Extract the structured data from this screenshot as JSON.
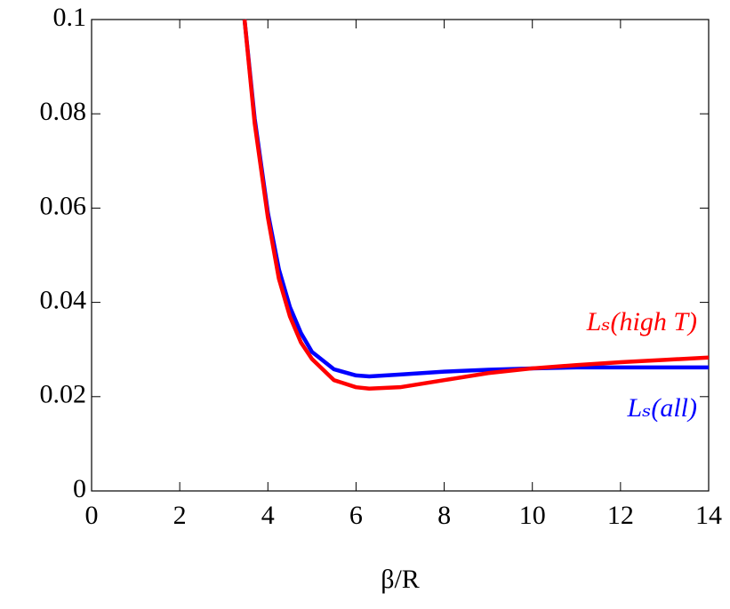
{
  "chart_data": {
    "type": "line",
    "xlabel": "β/R",
    "xlim": [
      0,
      14
    ],
    "xticks": [
      0,
      2,
      4,
      6,
      8,
      10,
      12,
      14
    ],
    "ylim": [
      0,
      0.1
    ],
    "yticks": [
      0,
      0.02,
      0.04,
      0.06,
      0.08,
      0.1
    ],
    "x": [
      3.47,
      3.7,
      4,
      4.25,
      4.5,
      4.75,
      5,
      5.5,
      6,
      6.3,
      7,
      8,
      9,
      10,
      11,
      12,
      13,
      14
    ],
    "series": [
      {
        "name": "Lₛ(all)",
        "color": "#0000ff",
        "values": [
          0.1,
          0.079,
          0.059,
          0.047,
          0.039,
          0.0335,
          0.0295,
          0.0258,
          0.0245,
          0.0243,
          0.0247,
          0.0253,
          0.0257,
          0.026,
          0.0262,
          0.0262,
          0.0262,
          0.0262
        ]
      },
      {
        "name": "Lₛ(high T)",
        "color": "#ff0000",
        "values": [
          0.1,
          0.078,
          0.058,
          0.045,
          0.037,
          0.0315,
          0.028,
          0.0235,
          0.022,
          0.0217,
          0.022,
          0.0235,
          0.025,
          0.026,
          0.0267,
          0.0273,
          0.0278,
          0.0283
        ]
      }
    ]
  }
}
